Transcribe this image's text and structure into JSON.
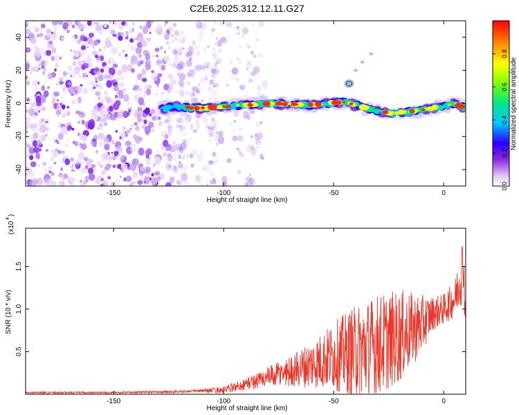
{
  "title": "C2E6.2025.312.12.11.G27",
  "chart_data": [
    {
      "type": "heatmap",
      "xlabel": "Height of straight line (km)",
      "ylabel": "Frequency (Hz)",
      "xlim": [
        -190,
        10
      ],
      "ylim": [
        -50,
        50
      ],
      "xticks": [
        -150,
        -100,
        -50,
        0
      ],
      "yticks": [
        -40,
        -20,
        0,
        20,
        40
      ],
      "colorbar": {
        "label": "Normalized spectral amplitude",
        "range": [
          0,
          1
        ],
        "ticks": [
          0.0,
          0.2,
          0.4,
          0.6,
          0.8
        ]
      },
      "features": {
        "noise_region_x": [
          -190,
          -103
        ],
        "band_center_hz": [
          [
            -125,
            -2
          ],
          [
            -110,
            -3
          ],
          [
            -100,
            -2
          ],
          [
            -80,
            0
          ],
          [
            -60,
            -1
          ],
          [
            -45,
            1
          ],
          [
            -35,
            -3
          ],
          [
            -25,
            -6
          ],
          [
            -15,
            -5
          ],
          [
            -5,
            -3
          ],
          [
            5,
            0
          ],
          [
            10,
            -3
          ]
        ],
        "side_blob": {
          "x": -43,
          "y": 12
        },
        "side_streak": [
          [
            -40,
            20
          ],
          [
            -37,
            25
          ],
          [
            -33,
            30
          ]
        ]
      }
    },
    {
      "type": "line",
      "xlabel": "Height of straight line (km)",
      "ylabel": "SNR (10 * v/v)",
      "yexponent": "(x10",
      "yexponent_power": "4",
      "xlim": [
        -190,
        10
      ],
      "ylim": [
        0,
        1.95
      ],
      "xticks": [
        -150,
        -100,
        -50,
        0
      ],
      "yticks": [
        0.5,
        1.0,
        1.5
      ],
      "ytick_labels": [
        "0.5",
        "1.0",
        "1.5"
      ],
      "series": [
        {
          "name": "SNR",
          "color": "#e83a2c",
          "envelope": {
            "x": [
              -190,
              -150,
              -120,
              -110,
              -100,
              -90,
              -80,
              -70,
              -60,
              -50,
              -40,
              -30,
              -20,
              -10,
              -5,
              0,
              5,
              7,
              8,
              9,
              10
            ],
            "mid": [
              0.02,
              0.02,
              0.03,
              0.04,
              0.05,
              0.12,
              0.2,
              0.27,
              0.35,
              0.45,
              0.5,
              0.58,
              0.68,
              0.82,
              0.95,
              1.0,
              1.12,
              1.3,
              1.45,
              1.55,
              0.75
            ],
            "amp": [
              0.01,
              0.01,
              0.015,
              0.02,
              0.04,
              0.07,
              0.12,
              0.18,
              0.28,
              0.4,
              0.55,
              0.6,
              0.55,
              0.35,
              0.2,
              0.18,
              0.22,
              0.3,
              0.4,
              0.3,
              0.25
            ]
          }
        }
      ]
    }
  ]
}
